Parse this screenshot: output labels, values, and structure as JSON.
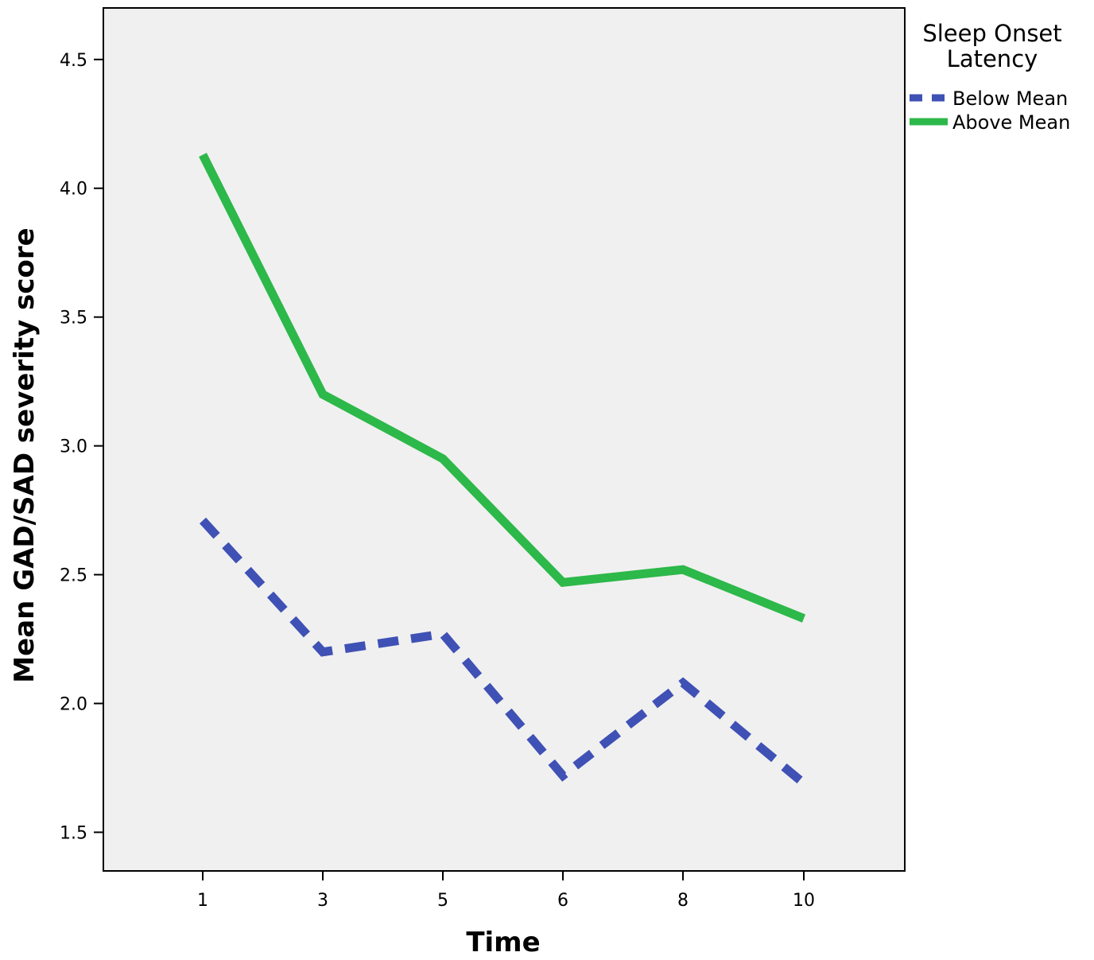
{
  "chart_data": {
    "type": "line",
    "xlabel": "Time",
    "ylabel": "Mean GAD/SAD severity score",
    "categories": [
      "1",
      "3",
      "5",
      "6",
      "8",
      "10"
    ],
    "ylim": [
      1.35,
      4.7
    ],
    "yticks": [
      "1.5",
      "2.0",
      "2.5",
      "3.0",
      "3.5",
      "4.0",
      "4.5"
    ],
    "grid": false,
    "legend": {
      "title_line1": "Sleep Onset",
      "title_line2": "Latency",
      "placement": "right"
    },
    "series": [
      {
        "name": "Below Mean",
        "values": [
          2.71,
          2.2,
          2.27,
          1.72,
          2.08,
          1.69
        ],
        "color": "#3f51b5",
        "style": "dashed"
      },
      {
        "name": "Above Mean",
        "values": [
          4.13,
          3.2,
          2.95,
          2.47,
          2.52,
          2.33
        ],
        "color": "#2db84a",
        "style": "solid"
      }
    ],
    "plot_background": "#f0f0f0"
  }
}
